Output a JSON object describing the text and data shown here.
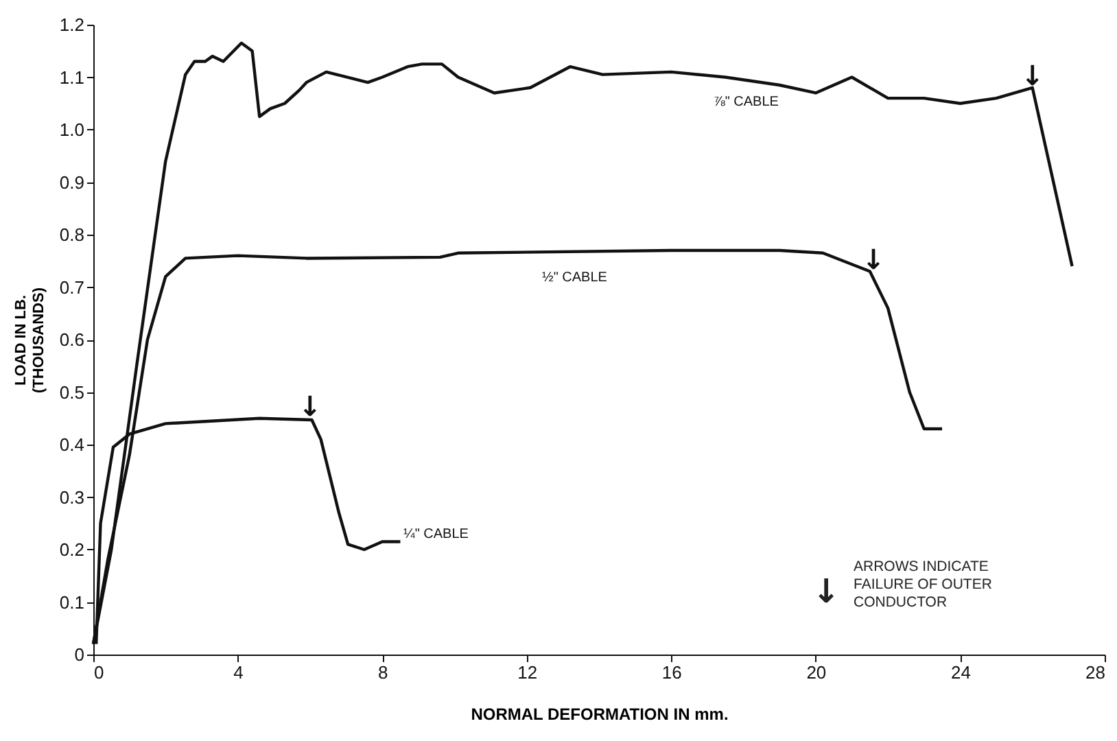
{
  "chart_data": {
    "type": "line",
    "xlabel": "NORMAL DEFORMATION IN mm.",
    "ylabel": "LOAD IN LB.\n(THOUSANDS)",
    "xlim": [
      0,
      28
    ],
    "xticks": [
      0,
      4,
      8,
      12,
      16,
      20,
      24,
      28
    ],
    "ylim": [
      0,
      1.2
    ],
    "yticks": [
      0,
      0.1,
      0.2,
      0.3,
      0.4,
      0.5,
      0.6,
      0.7,
      0.8,
      0.9,
      {
        "value": 1,
        "label": "1.0"
      },
      1.1,
      1.2
    ],
    "grid": false,
    "marker": "none",
    "line_style": "solid",
    "series": [
      {
        "name": "⅞\" CABLE",
        "color": "#111111",
        "x": [
          0,
          0.5,
          1.2,
          2.0,
          2.55,
          2.8,
          3.1,
          3.3,
          3.6,
          4.1,
          4.4,
          4.6,
          4.9,
          5.3,
          5.7,
          5.9,
          6.45,
          7.6,
          8.0,
          8.7,
          9.1,
          9.65,
          10.1,
          11.1,
          12.1,
          13.2,
          14.1,
          16,
          17.5,
          19,
          20,
          21,
          22,
          23,
          24,
          25,
          26,
          27.1
        ],
        "values": [
          0.02,
          0.2,
          0.55,
          0.94,
          1.105,
          1.13,
          1.13,
          1.14,
          1.13,
          1.165,
          1.15,
          1.025,
          1.04,
          1.05,
          1.075,
          1.09,
          1.11,
          1.09,
          1.1,
          1.12,
          1.125,
          1.125,
          1.1,
          1.07,
          1.08,
          1.12,
          1.105,
          1.11,
          1.1,
          1.085,
          1.07,
          1.1,
          1.06,
          1.06,
          1.05,
          1.06,
          1.08,
          0.74
        ]
      },
      {
        "name": "½\" CABLE",
        "color": "#111111",
        "x": [
          0,
          0.4,
          1.0,
          1.5,
          2.0,
          2.55,
          4.0,
          5.9,
          9.6,
          10.1,
          16,
          19,
          20.2,
          21.5,
          22,
          22.6,
          23,
          23.5
        ],
        "values": [
          0.02,
          0.18,
          0.38,
          0.6,
          0.72,
          0.755,
          0.76,
          0.755,
          0.757,
          0.765,
          0.77,
          0.77,
          0.765,
          0.73,
          0.66,
          0.5,
          0.43,
          0.43
        ]
      },
      {
        "name": "¼\" CABLE",
        "color": "#111111",
        "x": [
          0.08,
          0.2,
          0.55,
          1.0,
          2.0,
          4.6,
          6.05,
          6.3,
          6.8,
          7.05,
          7.5,
          8.0,
          8.5
        ],
        "values": [
          0.02,
          0.25,
          0.395,
          0.42,
          0.44,
          0.45,
          0.447,
          0.41,
          0.27,
          0.21,
          0.2,
          0.215,
          0.215
        ]
      }
    ],
    "annotations": [
      {
        "text": "↓",
        "x": 26,
        "y": 1.08
      },
      {
        "text": "↓",
        "x": 21.6,
        "y": 0.73
      },
      {
        "text": "↓",
        "x": 6.0,
        "y": 0.45
      },
      "↓",
      "ARROWS INDICATE\nFAILURE OF OUTER\nCONDUCTOR"
    ]
  }
}
